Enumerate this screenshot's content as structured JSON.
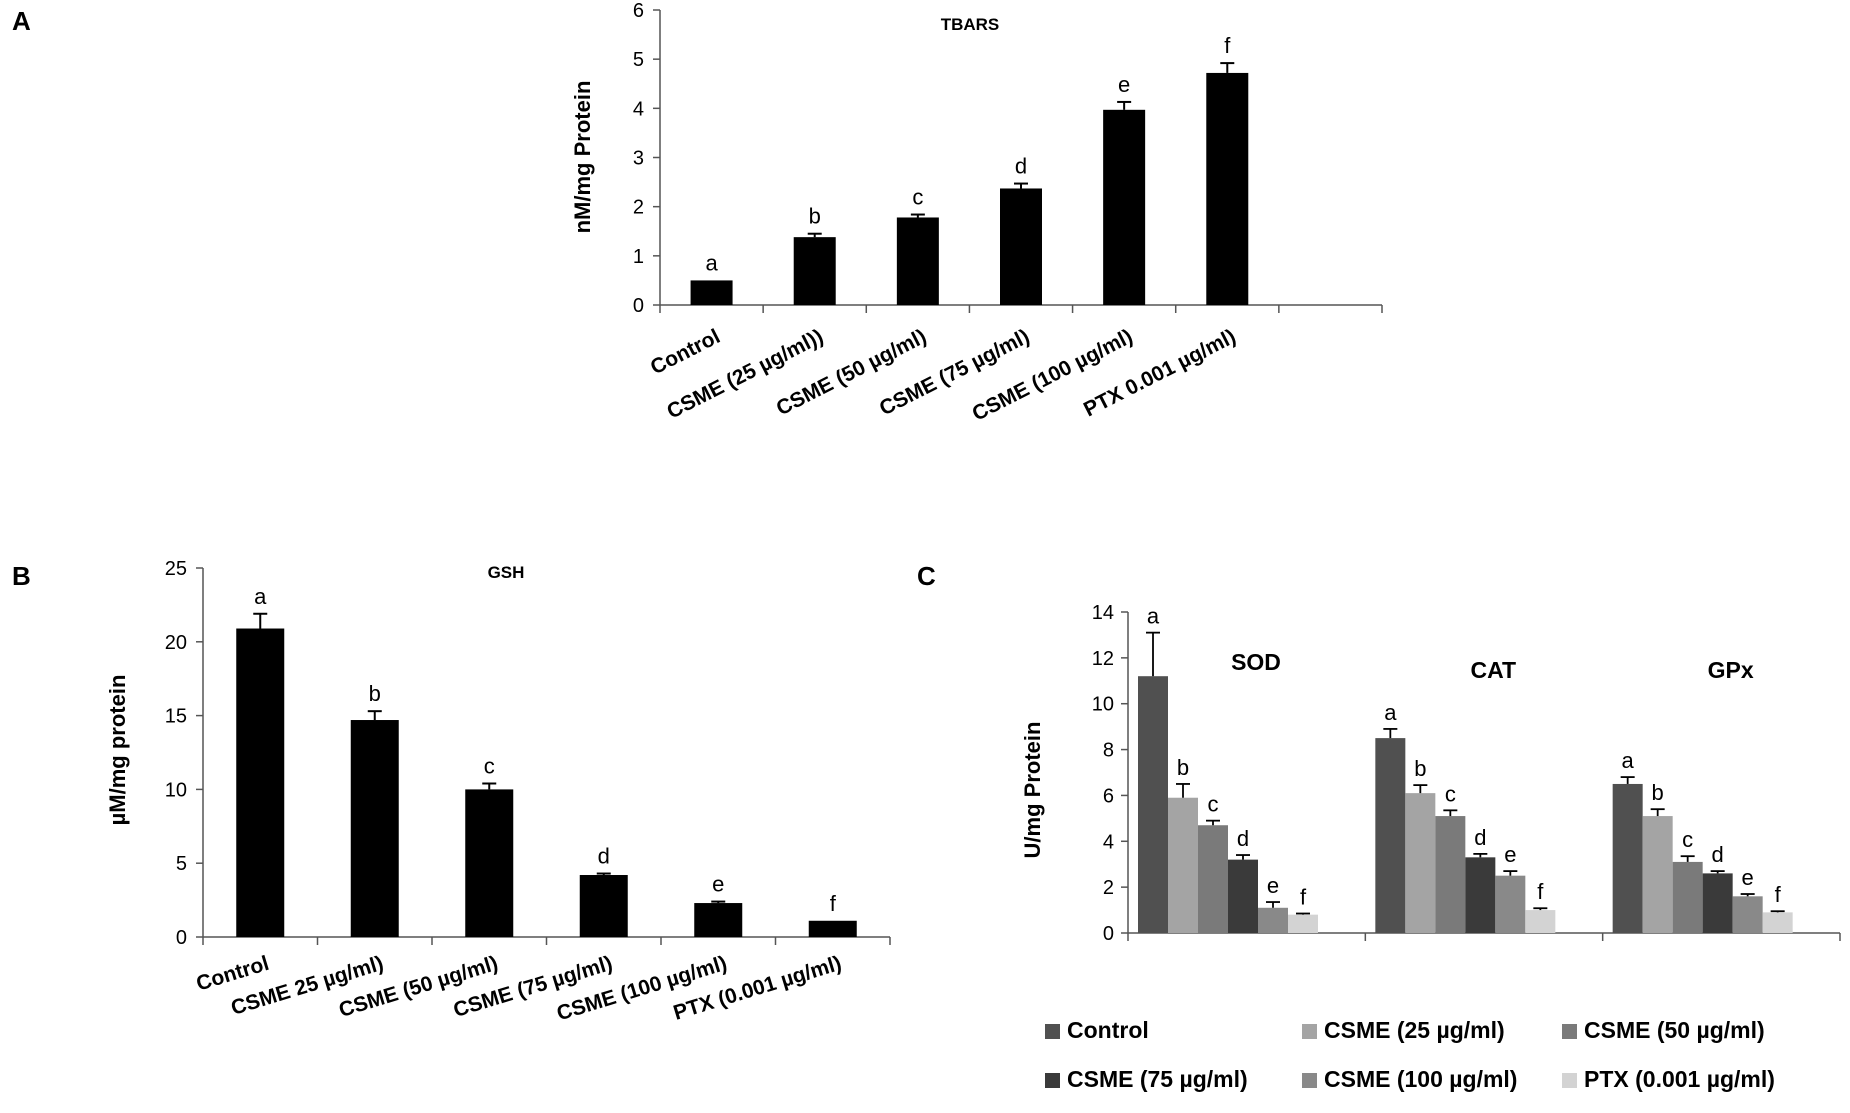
{
  "figure": {
    "panels": [
      "A",
      "B",
      "C"
    ]
  },
  "chart_data": [
    {
      "id": "A",
      "type": "bar",
      "title": "TBARS",
      "ylabel": "nM/mg Protein",
      "xlabel": "",
      "ylim": [
        0,
        6
      ],
      "yticks": [
        "0",
        "1",
        "2",
        "3",
        "4",
        "5",
        "6"
      ],
      "categories": [
        "Control",
        "CSME (25 µg/ml))",
        "CSME (50 µg/ml)",
        "CSME (75 µg/ml)",
        "CSME (100 µg/ml)",
        "PTX 0.001 µg/ml)"
      ],
      "values": [
        0.5,
        1.38,
        1.78,
        2.37,
        3.97,
        4.72
      ],
      "errors": [
        0,
        0.07,
        0.06,
        0.1,
        0.16,
        0.2
      ],
      "annotations": [
        "a",
        "b",
        "c",
        "d",
        "e",
        "f"
      ],
      "bar_color": "#000000"
    },
    {
      "id": "B",
      "type": "bar",
      "title": "GSH",
      "ylabel": "µM/mg protein",
      "xlabel": "",
      "ylim": [
        0,
        25
      ],
      "yticks": [
        "0",
        "5",
        "10",
        "15",
        "20",
        "25"
      ],
      "categories": [
        "Control",
        "CSME 25 µg/ml)",
        "CSME (50 µg/ml)",
        "CSME (75 µg/ml)",
        "CSME (100 µg/ml)",
        "PTX (0.001 µg/ml)"
      ],
      "values": [
        20.9,
        14.7,
        10.0,
        4.2,
        2.3,
        1.1
      ],
      "errors": [
        1.0,
        0.6,
        0.4,
        0.1,
        0.1,
        0
      ],
      "annotations": [
        "a",
        "b",
        "c",
        "d",
        "e",
        "f"
      ],
      "bar_color": "#000000"
    },
    {
      "id": "C",
      "type": "bar",
      "title": "",
      "ylabel": "U/mg Protein",
      "xlabel": "",
      "ylim": [
        0,
        14
      ],
      "yticks": [
        "0",
        "2",
        "4",
        "6",
        "8",
        "10",
        "12",
        "14"
      ],
      "categories": [
        "SOD",
        "CAT",
        "GPx"
      ],
      "series": [
        {
          "name": "Control",
          "color": "#505050",
          "values": [
            11.2,
            8.5,
            6.5
          ],
          "errors": [
            1.9,
            0.4,
            0.3
          ],
          "annotations": [
            "a",
            "a",
            "a"
          ]
        },
        {
          "name": "CSME (25  µg/ml)",
          "color": "#a4a4a4",
          "values": [
            5.9,
            6.1,
            5.1
          ],
          "errors": [
            0.6,
            0.35,
            0.3
          ],
          "annotations": [
            "b",
            "b",
            "b"
          ]
        },
        {
          "name": "CSME (50  µg/ml)",
          "color": "#7a7a7a",
          "values": [
            4.7,
            5.1,
            3.1
          ],
          "errors": [
            0.2,
            0.25,
            0.25
          ],
          "annotations": [
            "c",
            "c",
            "c"
          ]
        },
        {
          "name": "CSME (75  µg/ml)",
          "color": "#3a3a3a",
          "values": [
            3.2,
            3.3,
            2.6
          ],
          "errors": [
            0.2,
            0.15,
            0.1
          ],
          "annotations": [
            "d",
            "d",
            "d"
          ]
        },
        {
          "name": "CSME (100  µg/ml)",
          "color": "#898989",
          "values": [
            1.1,
            2.5,
            1.6
          ],
          "errors": [
            0.25,
            0.2,
            0.1
          ],
          "annotations": [
            "e",
            "e",
            "e"
          ]
        },
        {
          "name": "PTX (0.001 µg/ml)",
          "color": "#d3d3d3",
          "values": [
            0.8,
            1.0,
            0.9
          ],
          "errors": [
            0.05,
            0.08,
            0.05
          ],
          "annotations": [
            "f",
            "f",
            "f"
          ]
        }
      ],
      "legend_position": "bottom"
    }
  ]
}
